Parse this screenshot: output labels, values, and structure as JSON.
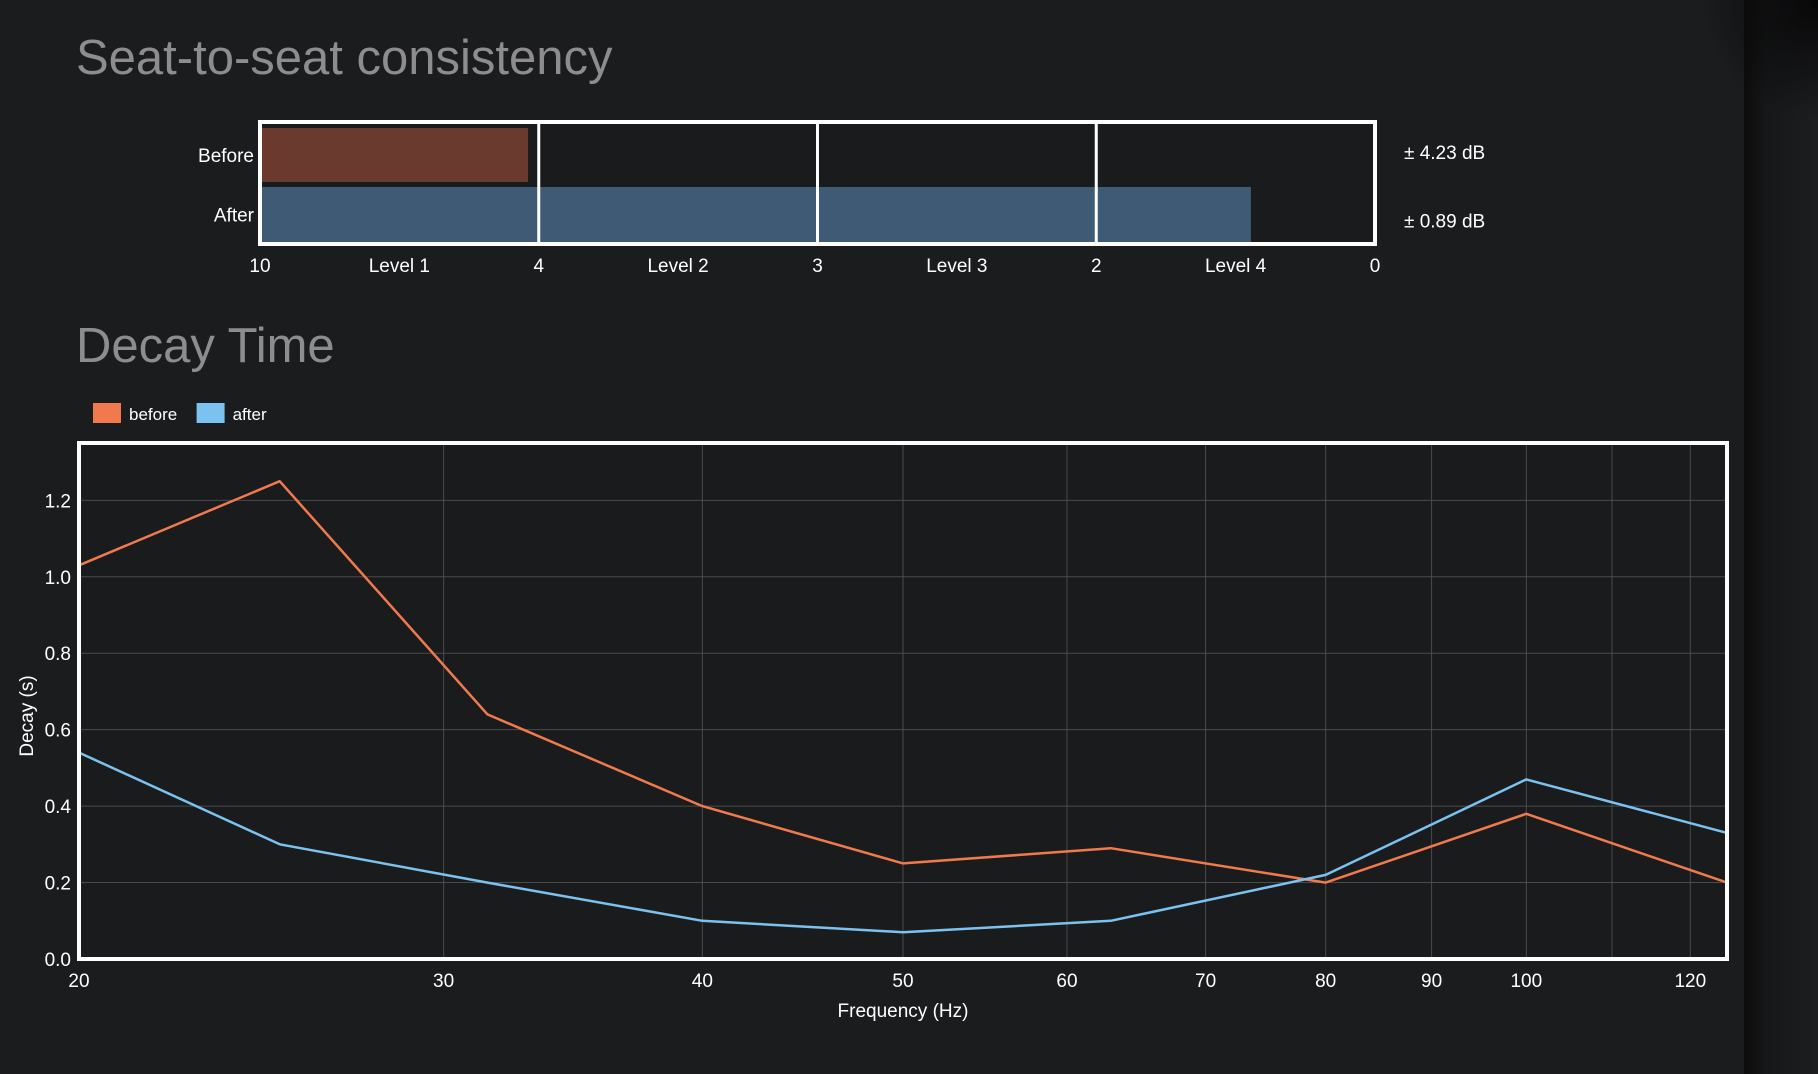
{
  "consistency": {
    "title": "Seat-to-seat consistency",
    "chart_data": {
      "type": "bar",
      "orientation": "horizontal",
      "categories": [
        "Before",
        "After"
      ],
      "value_labels": [
        "± 4.23 dB",
        "± 0.89 dB"
      ],
      "values": [
        4.23,
        0.89
      ],
      "axis_ticks": [
        "10",
        "4",
        "3",
        "2",
        "0"
      ],
      "zones": [
        "Level 1",
        "Level 2",
        "Level 3",
        "Level 4"
      ],
      "colors": {
        "before": "#6b3a2e",
        "after": "#3e5a74"
      }
    }
  },
  "decay": {
    "title": "Decay Time",
    "chart_data": {
      "type": "line",
      "xlabel": "Frequency (Hz)",
      "ylabel": "Decay (s)",
      "xscale": "log",
      "xlim": [
        20,
        125
      ],
      "ylim": [
        0,
        1.35
      ],
      "x_ticks": [
        20,
        30,
        40,
        50,
        60,
        70,
        80,
        90,
        100,
        120
      ],
      "y_ticks": [
        "0.0",
        "0.2",
        "0.4",
        "0.6",
        "0.8",
        "1.0",
        "1.2"
      ],
      "grid": true,
      "legend": "top-left",
      "series": [
        {
          "name": "before",
          "color": "#f07a4d",
          "x": [
            20,
            25,
            31.5,
            40,
            50,
            63,
            80,
            100,
            125
          ],
          "y": [
            1.03,
            1.25,
            0.64,
            0.4,
            0.25,
            0.29,
            0.2,
            0.38,
            0.2
          ]
        },
        {
          "name": "after",
          "color": "#7cc2f0",
          "x": [
            20,
            25,
            31.5,
            40,
            50,
            63,
            80,
            100,
            125
          ],
          "y": [
            0.54,
            0.3,
            0.2,
            0.1,
            0.07,
            0.1,
            0.22,
            0.47,
            0.33
          ]
        }
      ]
    }
  }
}
